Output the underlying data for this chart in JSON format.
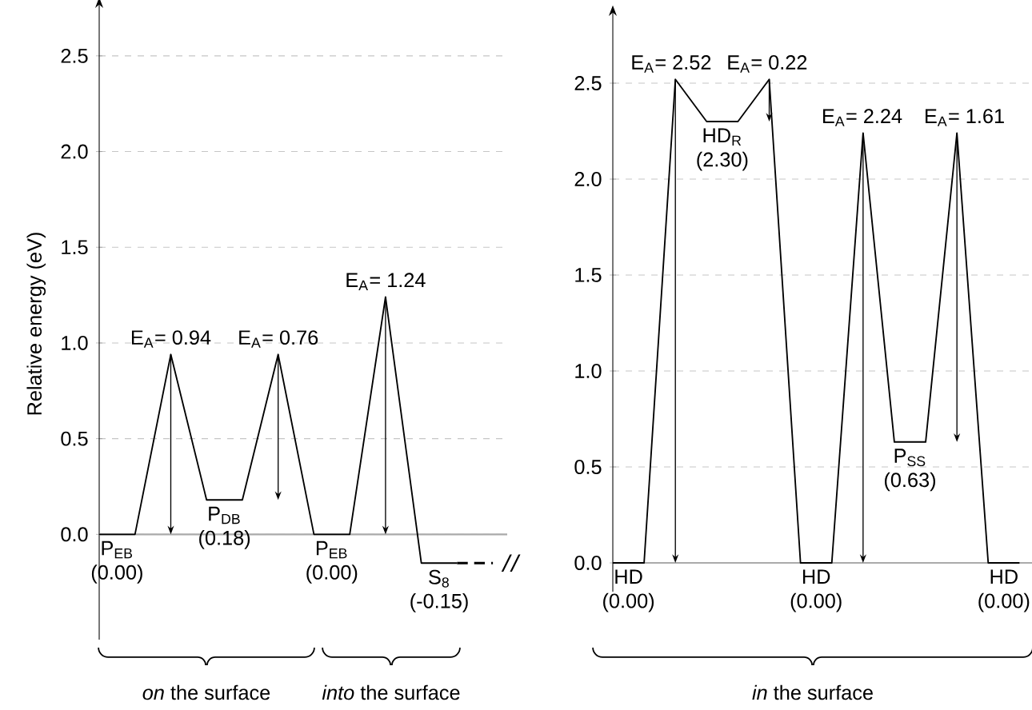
{
  "chart_data": [
    {
      "type": "line",
      "ylabel": "Relative energy (eV)",
      "ylim": [
        -0.55,
        2.75
      ],
      "categories": [
        null,
        null,
        null,
        null,
        null,
        null,
        null,
        null,
        null,
        null,
        null,
        null
      ],
      "yticks": [
        {
          "value": 0,
          "label": "0.0"
        },
        {
          "value": 0.5,
          "label": "0.5"
        },
        {
          "value": 1,
          "label": "1.0"
        },
        {
          "value": 1.5,
          "label": "1.5"
        },
        {
          "value": 2,
          "label": "2.0"
        },
        {
          "value": 2.5,
          "label": "2.5"
        }
      ],
      "grid": "y",
      "tick_labels": "y",
      "ref_lines": [
        {
          "axis": "y",
          "value": 0,
          "color": "#aaaaaa"
        }
      ],
      "series": [
        {
          "color": "#000000",
          "values": [
            0,
            0,
            0.94,
            0.18,
            0.18,
            0.94,
            0,
            0,
            1.24,
            -0.15,
            -0.15,
            null
          ]
        },
        {
          "color": "#000000",
          "line_style": "dashed",
          "values": [
            null,
            null,
            null,
            null,
            null,
            null,
            null,
            null,
            null,
            null,
            -0.15,
            -0.15
          ]
        }
      ],
      "annotations": [
        "E$_{A}$= 0.94",
        "E$_{A}$= 0.76",
        "E$_{A}$= 1.24",
        "P$_{EB}$",
        "(0.00)",
        "P$_{DB}$",
        "(0.18)",
        "P$_{EB}$",
        "(0.00)",
        "S$_{8}$",
        "(-0.15)",
        "*on* the surface",
        "*into* the surface"
      ]
    },
    {
      "type": "line",
      "ylim": [
        -0.15,
        2.85
      ],
      "categories": [
        null,
        null,
        null,
        null,
        null,
        null,
        null,
        null,
        null,
        null,
        null,
        null,
        null,
        null
      ],
      "yticks": [
        {
          "value": 0,
          "label": "0.0"
        },
        {
          "value": 0.5,
          "label": "0.5"
        },
        {
          "value": 1,
          "label": "1.0"
        },
        {
          "value": 1.5,
          "label": "1.5"
        },
        {
          "value": 2,
          "label": "2.0"
        },
        {
          "value": 2.5,
          "label": "2.5"
        }
      ],
      "grid": "y",
      "tick_labels": "y",
      "ref_lines": [
        {
          "axis": "y",
          "value": 0,
          "color": "#aaaaaa"
        }
      ],
      "series": [
        {
          "color": "#000000",
          "values": [
            0,
            0,
            2.52,
            2.3,
            2.3,
            2.52,
            0,
            0,
            2.24,
            0.63,
            0.63,
            2.24,
            0,
            0
          ]
        }
      ],
      "annotations": [
        "E$_{A}$= 2.52",
        "E$_{A}$= 0.22",
        "E$_{A}$= 2.24",
        "E$_{A}$= 1.61",
        "HD",
        "(0.00)",
        "HD$_{R}$",
        "(2.30)",
        "HD",
        "(0.00)",
        "P$_{SS}$",
        "(0.63)",
        "HD",
        "(0.00)",
        "*in* the surface"
      ]
    }
  ]
}
